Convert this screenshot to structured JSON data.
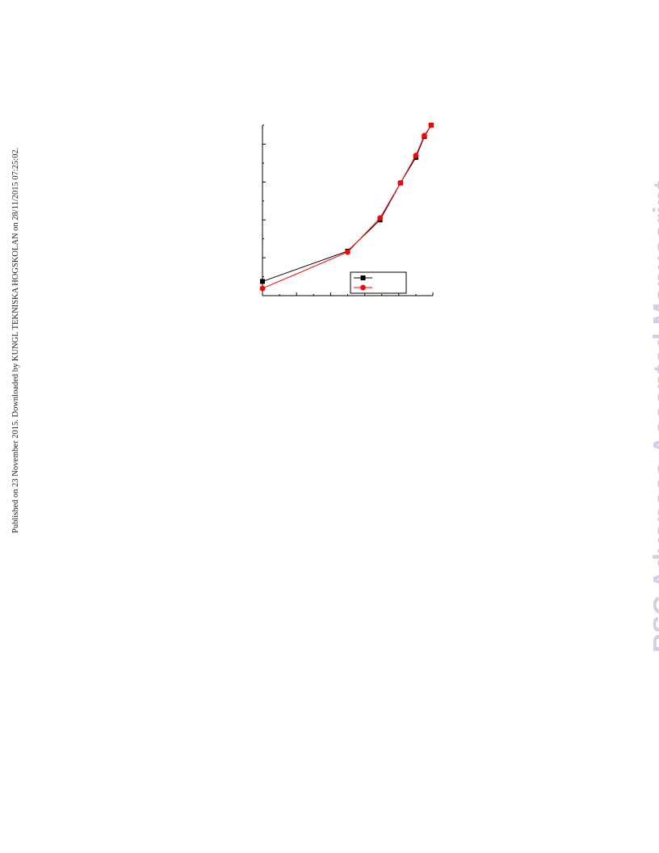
{
  "sidebar_note": "Published on 23 November 2015. Downloaded by KUNGL TEKNISKA HOGSKOLAN on 28/11/2015 07:25:02.",
  "watermark": "RSC Advances Accepted Manuscript",
  "colors": {
    "series_1": "#000000",
    "series_2": "#ff0000"
  },
  "chart_data": {
    "type": "line",
    "title": "",
    "xlabel": "",
    "ylabel": "",
    "xlim": [
      0,
      10
    ],
    "ylim": [
      0,
      9
    ],
    "x_ticks_major": [
      0,
      2,
      4,
      6,
      8,
      10
    ],
    "y_ticks_major": [
      0,
      2,
      4,
      6,
      8
    ],
    "grid": false,
    "legend_position": "bottom-right",
    "series": [
      {
        "marker": "square",
        "color": "#000000",
        "x": [
          0,
          5.0,
          6.9,
          8.1,
          9.0,
          9.5,
          9.9
        ],
        "y": [
          0.75,
          2.35,
          4.0,
          5.95,
          7.3,
          8.4,
          9.0
        ]
      },
      {
        "marker": "circle",
        "color": "#ff0000",
        "x": [
          0,
          5.0,
          6.9,
          8.1,
          9.0,
          9.5,
          9.9
        ],
        "y": [
          0.38,
          2.3,
          4.1,
          5.95,
          7.4,
          8.45,
          9.0
        ]
      }
    ]
  }
}
